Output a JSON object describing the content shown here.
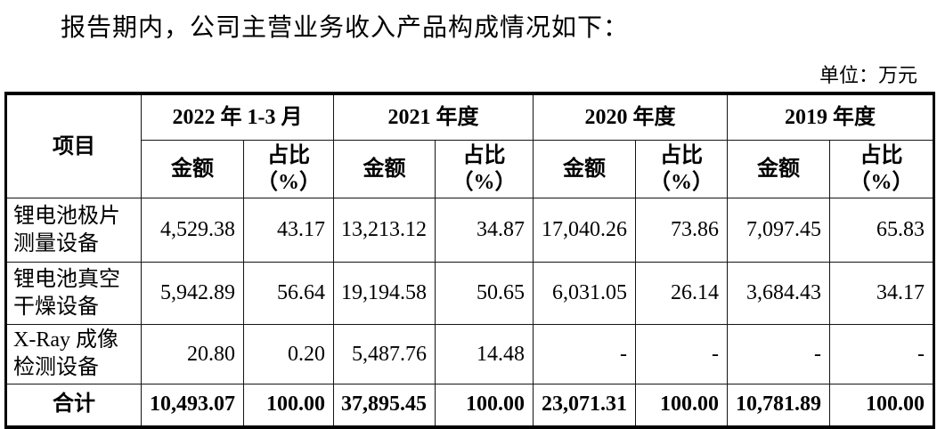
{
  "page": {
    "intro_text": "报告期内，公司主营业务收入产品构成情况如下：",
    "unit_label": "单位：万元"
  },
  "table": {
    "item_header": "项目",
    "periods": [
      {
        "label": "2022 年 1-3 月"
      },
      {
        "label": "2021 年度"
      },
      {
        "label": "2020 年度"
      },
      {
        "label": "2019 年度"
      }
    ],
    "sub_headers": {
      "amount": "金额",
      "ratio_line1": "占比",
      "ratio_line2": "（%）"
    },
    "rows": [
      {
        "name": "锂电池极片测量设备",
        "is_total": false,
        "values": [
          "4,529.38",
          "43.17",
          "13,213.12",
          "34.87",
          "17,040.26",
          "73.86",
          "7,097.45",
          "65.83"
        ]
      },
      {
        "name": "锂电池真空干燥设备",
        "is_total": false,
        "values": [
          "5,942.89",
          "56.64",
          "19,194.58",
          "50.65",
          "6,031.05",
          "26.14",
          "3,684.43",
          "34.17"
        ]
      },
      {
        "name": "X-Ray 成像检测设备",
        "is_total": false,
        "values": [
          "20.80",
          "0.20",
          "5,487.76",
          "14.48",
          "-",
          "-",
          "-",
          "-"
        ]
      },
      {
        "name": "合计",
        "is_total": true,
        "values": [
          "10,493.07",
          "100.00",
          "37,895.45",
          "100.00",
          "23,071.31",
          "100.00",
          "10,781.89",
          "100.00"
        ]
      }
    ]
  },
  "colors": {
    "background": "#ffffff",
    "text": "#000000",
    "border": "#000000"
  }
}
